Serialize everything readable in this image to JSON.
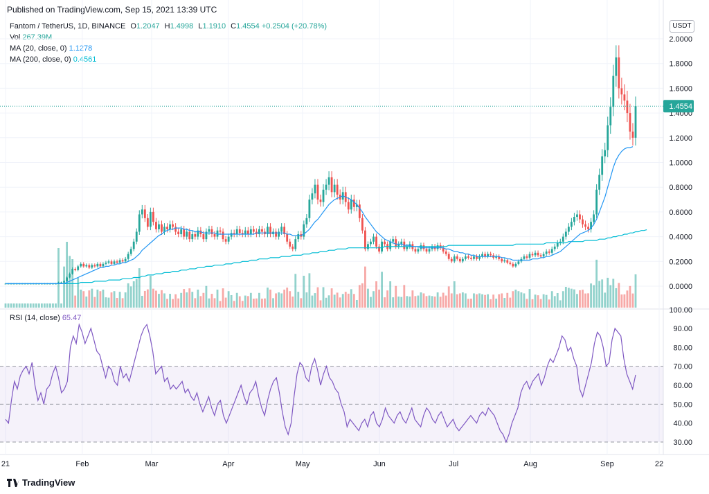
{
  "header": {
    "published": "Published on TradingView.com, Sep 15, 2021 13:39 UTC"
  },
  "legend": {
    "symbol": "Fantom / TetherUS, 1D, BINANCE",
    "open_label": "O",
    "open": "1.2047",
    "high_label": "H",
    "high": "1.4998",
    "low_label": "L",
    "low": "1.1910",
    "close_label": "C",
    "close": "1.4554",
    "change": "+0.2504 (+20.78%)",
    "vol_label": "Vol",
    "vol": "267.39M",
    "ma20_label": "MA (20, close, 0)",
    "ma20": "1.1278",
    "ma200_label": "MA (200, close, 0)",
    "ma200": "0.4561"
  },
  "rsi_legend": {
    "label": "RSI (14, close)",
    "value": "65.47"
  },
  "currency": "USDT",
  "last_price_tag": "1.4554",
  "brand": "TradingView",
  "colors": {
    "up": "#26a69a",
    "down": "#ef5350",
    "ma20": "#2196f3",
    "ma200": "#00bcd4",
    "rsi": "#7e57c2",
    "price_tag": "#26a69a"
  },
  "chart_data": [
    {
      "type": "candlestick",
      "title": "Fantom / TetherUS, 1D, BINANCE",
      "price_ticks": [
        "2.0000",
        "1.8000",
        "1.6000",
        "1.4000",
        "1.2000",
        "1.0000",
        "0.8000",
        "0.6000",
        "0.4000",
        "0.2000",
        "0.0000"
      ],
      "ylim": [
        0,
        2.0
      ],
      "x_ticks": [
        "21",
        "Feb",
        "Mar",
        "Apr",
        "May",
        "Jun",
        "Jul",
        "Aug",
        "Sep",
        "22"
      ],
      "x_range": [
        "2021-01-01",
        "2021-09-22"
      ],
      "closes": [
        0.02,
        0.02,
        0.02,
        0.02,
        0.02,
        0.02,
        0.02,
        0.02,
        0.02,
        0.02,
        0.02,
        0.02,
        0.02,
        0.02,
        0.02,
        0.02,
        0.02,
        0.02,
        0.02,
        0.03,
        0.03,
        0.04,
        0.07,
        0.1,
        0.14,
        0.13,
        0.16,
        0.18,
        0.16,
        0.17,
        0.15,
        0.17,
        0.16,
        0.18,
        0.16,
        0.18,
        0.19,
        0.2,
        0.18,
        0.2,
        0.19,
        0.21,
        0.2,
        0.22,
        0.26,
        0.3,
        0.36,
        0.44,
        0.58,
        0.62,
        0.55,
        0.48,
        0.6,
        0.52,
        0.46,
        0.5,
        0.44,
        0.48,
        0.46,
        0.5,
        0.48,
        0.44,
        0.42,
        0.46,
        0.4,
        0.44,
        0.38,
        0.42,
        0.4,
        0.45,
        0.42,
        0.38,
        0.44,
        0.46,
        0.42,
        0.4,
        0.45,
        0.44,
        0.38,
        0.36,
        0.4,
        0.43,
        0.42,
        0.46,
        0.43,
        0.42,
        0.45,
        0.42,
        0.46,
        0.44,
        0.42,
        0.46,
        0.44,
        0.42,
        0.48,
        0.42,
        0.44,
        0.4,
        0.44,
        0.48,
        0.42,
        0.36,
        0.32,
        0.3,
        0.38,
        0.42,
        0.4,
        0.5,
        0.55,
        0.7,
        0.75,
        0.82,
        0.7,
        0.68,
        0.78,
        0.82,
        0.88,
        0.76,
        0.82,
        0.74,
        0.7,
        0.76,
        0.68,
        0.62,
        0.7,
        0.64,
        0.66,
        0.55,
        0.45,
        0.3,
        0.34,
        0.36,
        0.4,
        0.32,
        0.28,
        0.36,
        0.34,
        0.3,
        0.36,
        0.38,
        0.32,
        0.34,
        0.36,
        0.3,
        0.32,
        0.34,
        0.3,
        0.28,
        0.3,
        0.33,
        0.3,
        0.28,
        0.3,
        0.32,
        0.3,
        0.33,
        0.31,
        0.28,
        0.26,
        0.22,
        0.2,
        0.24,
        0.22,
        0.2,
        0.22,
        0.24,
        0.23,
        0.22,
        0.24,
        0.22,
        0.24,
        0.26,
        0.24,
        0.26,
        0.25,
        0.23,
        0.24,
        0.22,
        0.2,
        0.21,
        0.19,
        0.18,
        0.16,
        0.18,
        0.2,
        0.22,
        0.24,
        0.23,
        0.26,
        0.25,
        0.27,
        0.25,
        0.24,
        0.26,
        0.28,
        0.27,
        0.3,
        0.32,
        0.35,
        0.36,
        0.4,
        0.44,
        0.48,
        0.52,
        0.56,
        0.58,
        0.54,
        0.5,
        0.48,
        0.46,
        0.52,
        0.58,
        0.78,
        0.9,
        1.05,
        1.1,
        1.3,
        1.45,
        1.7,
        1.85,
        1.6,
        1.55,
        1.5,
        1.4,
        1.25,
        1.2,
        1.4554
      ],
      "ma20": [
        0.02,
        0.02,
        0.02,
        0.02,
        0.02,
        0.02,
        0.02,
        0.02,
        0.02,
        0.02,
        0.02,
        0.02,
        0.02,
        0.02,
        0.02,
        0.02,
        0.02,
        0.02,
        0.02,
        0.02,
        0.02,
        0.02,
        0.03,
        0.04,
        0.05,
        0.06,
        0.07,
        0.08,
        0.09,
        0.1,
        0.11,
        0.12,
        0.13,
        0.14,
        0.15,
        0.15,
        0.16,
        0.16,
        0.17,
        0.17,
        0.18,
        0.18,
        0.19,
        0.19,
        0.2,
        0.21,
        0.22,
        0.24,
        0.26,
        0.29,
        0.31,
        0.33,
        0.35,
        0.37,
        0.39,
        0.41,
        0.42,
        0.44,
        0.45,
        0.46,
        0.46,
        0.47,
        0.47,
        0.47,
        0.46,
        0.46,
        0.45,
        0.45,
        0.44,
        0.44,
        0.44,
        0.43,
        0.43,
        0.43,
        0.43,
        0.43,
        0.42,
        0.42,
        0.42,
        0.42,
        0.42,
        0.42,
        0.42,
        0.42,
        0.42,
        0.42,
        0.42,
        0.42,
        0.42,
        0.42,
        0.43,
        0.43,
        0.43,
        0.43,
        0.43,
        0.43,
        0.43,
        0.43,
        0.43,
        0.43,
        0.43,
        0.42,
        0.42,
        0.41,
        0.41,
        0.41,
        0.41,
        0.42,
        0.44,
        0.46,
        0.49,
        0.52,
        0.54,
        0.57,
        0.6,
        0.63,
        0.66,
        0.68,
        0.7,
        0.71,
        0.72,
        0.73,
        0.72,
        0.71,
        0.7,
        0.68,
        0.66,
        0.63,
        0.6,
        0.56,
        0.53,
        0.5,
        0.47,
        0.44,
        0.42,
        0.4,
        0.38,
        0.37,
        0.36,
        0.35,
        0.34,
        0.34,
        0.34,
        0.33,
        0.33,
        0.33,
        0.32,
        0.32,
        0.32,
        0.31,
        0.31,
        0.31,
        0.31,
        0.31,
        0.31,
        0.31,
        0.31,
        0.31,
        0.3,
        0.3,
        0.29,
        0.28,
        0.28,
        0.27,
        0.27,
        0.26,
        0.26,
        0.25,
        0.25,
        0.24,
        0.24,
        0.24,
        0.24,
        0.24,
        0.24,
        0.24,
        0.24,
        0.24,
        0.23,
        0.23,
        0.22,
        0.22,
        0.21,
        0.21,
        0.21,
        0.21,
        0.21,
        0.21,
        0.21,
        0.22,
        0.22,
        0.22,
        0.23,
        0.23,
        0.24,
        0.24,
        0.25,
        0.26,
        0.27,
        0.28,
        0.3,
        0.32,
        0.34,
        0.36,
        0.38,
        0.4,
        0.42,
        0.43,
        0.44,
        0.45,
        0.47,
        0.5,
        0.54,
        0.6,
        0.66,
        0.72,
        0.8,
        0.88,
        0.96,
        1.02,
        1.06,
        1.09,
        1.11,
        1.12,
        1.12,
        1.1278
      ],
      "ma200": [
        0.02,
        0.02,
        0.02,
        0.02,
        0.02,
        0.02,
        0.02,
        0.02,
        0.02,
        0.02,
        0.02,
        0.02,
        0.02,
        0.02,
        0.02,
        0.02,
        0.02,
        0.02,
        0.02,
        0.02,
        0.02,
        0.02,
        0.02,
        0.02,
        0.02,
        0.02,
        0.02,
        0.03,
        0.03,
        0.03,
        0.03,
        0.03,
        0.04,
        0.04,
        0.04,
        0.04,
        0.04,
        0.05,
        0.05,
        0.05,
        0.05,
        0.05,
        0.06,
        0.06,
        0.06,
        0.06,
        0.07,
        0.07,
        0.07,
        0.08,
        0.08,
        0.09,
        0.09,
        0.09,
        0.1,
        0.1,
        0.1,
        0.11,
        0.11,
        0.11,
        0.12,
        0.12,
        0.12,
        0.13,
        0.13,
        0.13,
        0.14,
        0.14,
        0.14,
        0.15,
        0.15,
        0.15,
        0.16,
        0.16,
        0.16,
        0.17,
        0.17,
        0.17,
        0.17,
        0.18,
        0.18,
        0.18,
        0.19,
        0.19,
        0.19,
        0.2,
        0.2,
        0.2,
        0.21,
        0.21,
        0.21,
        0.22,
        0.22,
        0.22,
        0.22,
        0.23,
        0.23,
        0.23,
        0.23,
        0.24,
        0.24,
        0.24,
        0.24,
        0.25,
        0.25,
        0.25,
        0.25,
        0.26,
        0.26,
        0.26,
        0.27,
        0.27,
        0.27,
        0.28,
        0.28,
        0.28,
        0.29,
        0.29,
        0.29,
        0.3,
        0.3,
        0.3,
        0.3,
        0.31,
        0.31,
        0.31,
        0.31,
        0.31,
        0.31,
        0.31,
        0.31,
        0.31,
        0.31,
        0.31,
        0.31,
        0.31,
        0.32,
        0.32,
        0.32,
        0.32,
        0.32,
        0.32,
        0.32,
        0.32,
        0.32,
        0.32,
        0.32,
        0.32,
        0.32,
        0.32,
        0.32,
        0.32,
        0.32,
        0.32,
        0.32,
        0.32,
        0.32,
        0.32,
        0.32,
        0.33,
        0.33,
        0.33,
        0.33,
        0.33,
        0.33,
        0.33,
        0.33,
        0.33,
        0.33,
        0.33,
        0.33,
        0.33,
        0.33,
        0.33,
        0.33,
        0.33,
        0.33,
        0.33,
        0.33,
        0.33,
        0.33,
        0.33,
        0.33,
        0.34,
        0.34,
        0.34,
        0.34,
        0.34,
        0.34,
        0.34,
        0.34,
        0.34,
        0.34,
        0.34,
        0.35,
        0.35,
        0.35,
        0.35,
        0.35,
        0.35,
        0.35,
        0.35,
        0.36,
        0.36,
        0.36,
        0.36,
        0.36,
        0.36,
        0.37,
        0.37,
        0.37,
        0.37,
        0.37,
        0.38,
        0.38,
        0.38,
        0.39,
        0.39,
        0.4,
        0.4,
        0.41,
        0.41,
        0.42,
        0.42,
        0.43,
        0.43,
        0.44,
        0.44,
        0.45,
        0.45,
        0.4561
      ]
    },
    {
      "type": "line",
      "title": "RSI (14, close)",
      "rsi_ticks": [
        "90.00",
        "80.00",
        "70.00",
        "60.00",
        "50.00",
        "40.00",
        "30.00"
      ],
      "ylim": [
        25,
        95
      ],
      "bands": [
        30,
        50,
        70
      ],
      "values": [
        42,
        40,
        52,
        62,
        58,
        65,
        68,
        70,
        66,
        72,
        60,
        52,
        56,
        50,
        58,
        60,
        66,
        70,
        64,
        56,
        58,
        62,
        80,
        86,
        82,
        92,
        88,
        82,
        86,
        90,
        84,
        78,
        76,
        70,
        64,
        70,
        68,
        62,
        60,
        70,
        64,
        66,
        62,
        68,
        74,
        80,
        86,
        90,
        92,
        86,
        78,
        66,
        68,
        70,
        62,
        64,
        58,
        60,
        58,
        60,
        62,
        56,
        58,
        54,
        52,
        56,
        50,
        46,
        50,
        54,
        48,
        44,
        50,
        52,
        44,
        40,
        44,
        48,
        52,
        56,
        60,
        54,
        50,
        56,
        58,
        62,
        54,
        48,
        44,
        52,
        58,
        62,
        64,
        56,
        46,
        38,
        34,
        40,
        54,
        66,
        72,
        70,
        64,
        62,
        70,
        74,
        68,
        60,
        66,
        70,
        64,
        62,
        58,
        56,
        50,
        46,
        38,
        42,
        40,
        38,
        36,
        40,
        42,
        38,
        44,
        46,
        40,
        38,
        42,
        48,
        44,
        42,
        40,
        44,
        46,
        42,
        40,
        44,
        48,
        42,
        40,
        38,
        44,
        48,
        46,
        42,
        40,
        44,
        46,
        42,
        38,
        40,
        42,
        38,
        36,
        38,
        40,
        42,
        44,
        42,
        40,
        44,
        46,
        44,
        48,
        46,
        44,
        40,
        36,
        34,
        30,
        34,
        40,
        44,
        48,
        56,
        60,
        62,
        58,
        62,
        64,
        66,
        60,
        64,
        70,
        74,
        72,
        76,
        80,
        86,
        84,
        78,
        80,
        74,
        70,
        58,
        54,
        60,
        66,
        72,
        82,
        88,
        86,
        80,
        70,
        72,
        84,
        90,
        88,
        86,
        74,
        66,
        62,
        58,
        65.47
      ]
    }
  ]
}
